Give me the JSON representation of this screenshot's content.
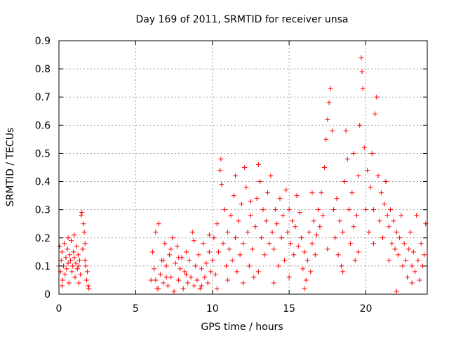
{
  "chart_data": {
    "type": "scatter",
    "title": "Day 169 of 2011, SRMTID for receiver unsa",
    "xlabel": "GPS time / hours",
    "ylabel": "SRMTID / TECUs",
    "xlim": [
      0,
      24
    ],
    "ylim": [
      0,
      0.9
    ],
    "x_ticks": [
      0,
      5,
      10,
      15,
      20
    ],
    "x_tick_labels": [
      "0",
      "5",
      "10",
      "15",
      "20"
    ],
    "y_ticks": [
      0,
      0.1,
      0.2,
      0.3,
      0.4,
      0.5,
      0.6,
      0.7,
      0.8,
      0.9
    ],
    "y_tick_labels": [
      "0",
      "0.1",
      "0.2",
      "0.3",
      "0.4",
      "0.5",
      "0.6",
      "0.7",
      "0.8",
      "0.9"
    ],
    "grid": true,
    "marker": "plus",
    "color": "#ff0000",
    "series": [
      {
        "name": "SRMTID",
        "points": [
          [
            0.0,
            0.1
          ],
          [
            0.05,
            0.17
          ],
          [
            0.1,
            0.08
          ],
          [
            0.15,
            0.12
          ],
          [
            0.2,
            0.15
          ],
          [
            0.25,
            0.05
          ],
          [
            0.3,
            0.1
          ],
          [
            0.35,
            0.18
          ],
          [
            0.4,
            0.07
          ],
          [
            0.45,
            0.13
          ],
          [
            0.5,
            0.09
          ],
          [
            0.55,
            0.16
          ],
          [
            0.6,
            0.11
          ],
          [
            0.65,
            0.04
          ],
          [
            0.7,
            0.14
          ],
          [
            0.75,
            0.12
          ],
          [
            0.8,
            0.19
          ],
          [
            0.85,
            0.08
          ],
          [
            0.9,
            0.1
          ],
          [
            0.95,
            0.15
          ],
          [
            1.0,
            0.13
          ],
          [
            1.05,
            0.06
          ],
          [
            1.1,
            0.11
          ],
          [
            1.15,
            0.17
          ],
          [
            1.2,
            0.09
          ],
          [
            1.25,
            0.14
          ],
          [
            1.3,
            0.1
          ],
          [
            1.35,
            0.12
          ],
          [
            1.4,
            0.07
          ],
          [
            1.45,
            0.28
          ],
          [
            1.5,
            0.29
          ],
          [
            1.55,
            0.16
          ],
          [
            1.6,
            0.25
          ],
          [
            1.65,
            0.22
          ],
          [
            1.7,
            0.18
          ],
          [
            1.75,
            0.1
          ],
          [
            1.8,
            0.05
          ],
          [
            1.85,
            0.08
          ],
          [
            1.9,
            0.03
          ],
          [
            1.95,
            0.02
          ],
          [
            0.2,
            0.03
          ],
          [
            0.6,
            0.2
          ],
          [
            1.0,
            0.21
          ],
          [
            1.3,
            0.04
          ],
          [
            1.7,
            0.12
          ],
          [
            6.0,
            0.05
          ],
          [
            6.1,
            0.15
          ],
          [
            6.2,
            0.09
          ],
          [
            6.3,
            0.22
          ],
          [
            6.4,
            0.02
          ],
          [
            6.5,
            0.25
          ],
          [
            6.6,
            0.07
          ],
          [
            6.7,
            0.12
          ],
          [
            6.8,
            0.04
          ],
          [
            6.9,
            0.18
          ],
          [
            7.0,
            0.1
          ],
          [
            7.1,
            0.03
          ],
          [
            7.2,
            0.14
          ],
          [
            7.3,
            0.06
          ],
          [
            7.4,
            0.2
          ],
          [
            7.5,
            0.01
          ],
          [
            7.6,
            0.11
          ],
          [
            7.7,
            0.17
          ],
          [
            7.8,
            0.05
          ],
          [
            7.9,
            0.09
          ],
          [
            8.0,
            0.13
          ],
          [
            8.1,
            0.02
          ],
          [
            8.2,
            0.08
          ],
          [
            8.3,
            0.15
          ],
          [
            8.4,
            0.04
          ],
          [
            8.5,
            0.12
          ],
          [
            8.6,
            0.06
          ],
          [
            8.7,
            0.22
          ],
          [
            8.8,
            0.03
          ],
          [
            8.9,
            0.1
          ],
          [
            9.0,
            0.05
          ],
          [
            9.1,
            0.14
          ],
          [
            9.2,
            0.02
          ],
          [
            9.3,
            0.09
          ],
          [
            9.4,
            0.18
          ],
          [
            9.5,
            0.06
          ],
          [
            9.6,
            0.11
          ],
          [
            9.7,
            0.04
          ],
          [
            9.8,
            0.15
          ],
          [
            9.9,
            0.08
          ],
          [
            6.3,
            0.05
          ],
          [
            6.8,
            0.12
          ],
          [
            7.3,
            0.16
          ],
          [
            7.8,
            0.13
          ],
          [
            8.3,
            0.07
          ],
          [
            8.8,
            0.19
          ],
          [
            9.3,
            0.03
          ],
          [
            9.8,
            0.21
          ],
          [
            6.5,
            0.02
          ],
          [
            7.0,
            0.06
          ],
          [
            10.0,
            0.12
          ],
          [
            10.1,
            0.2
          ],
          [
            10.2,
            0.07
          ],
          [
            10.3,
            0.25
          ],
          [
            10.4,
            0.15
          ],
          [
            10.5,
            0.44
          ],
          [
            10.55,
            0.48
          ],
          [
            10.6,
            0.39
          ],
          [
            10.7,
            0.18
          ],
          [
            10.8,
            0.3
          ],
          [
            10.9,
            0.1
          ],
          [
            11.0,
            0.22
          ],
          [
            11.1,
            0.16
          ],
          [
            11.2,
            0.28
          ],
          [
            11.3,
            0.12
          ],
          [
            11.4,
            0.35
          ],
          [
            11.5,
            0.2
          ],
          [
            11.6,
            0.08
          ],
          [
            11.7,
            0.26
          ],
          [
            11.8,
            0.14
          ],
          [
            11.9,
            0.32
          ],
          [
            12.0,
            0.18
          ],
          [
            12.1,
            0.45
          ],
          [
            12.2,
            0.38
          ],
          [
            12.3,
            0.22
          ],
          [
            12.4,
            0.1
          ],
          [
            12.5,
            0.28
          ],
          [
            12.6,
            0.16
          ],
          [
            12.7,
            0.06
          ],
          [
            12.8,
            0.24
          ],
          [
            12.9,
            0.34
          ],
          [
            13.0,
            0.46
          ],
          [
            13.1,
            0.4
          ],
          [
            13.2,
            0.2
          ],
          [
            13.3,
            0.3
          ],
          [
            13.4,
            0.14
          ],
          [
            13.5,
            0.26
          ],
          [
            13.6,
            0.36
          ],
          [
            13.7,
            0.18
          ],
          [
            13.8,
            0.42
          ],
          [
            13.9,
            0.22
          ],
          [
            14.0,
            0.16
          ],
          [
            14.1,
            0.3
          ],
          [
            14.2,
            0.25
          ],
          [
            14.3,
            0.1
          ],
          [
            14.4,
            0.34
          ],
          [
            14.5,
            0.2
          ],
          [
            14.6,
            0.28
          ],
          [
            14.7,
            0.12
          ],
          [
            14.8,
            0.37
          ],
          [
            14.9,
            0.22
          ],
          [
            15.0,
            0.3
          ],
          [
            15.1,
            0.18
          ],
          [
            15.2,
            0.26
          ],
          [
            15.3,
            0.14
          ],
          [
            15.4,
            0.24
          ],
          [
            15.5,
            0.35
          ],
          [
            15.6,
            0.17
          ],
          [
            15.7,
            0.29
          ],
          [
            15.8,
            0.2
          ],
          [
            15.9,
            0.09
          ],
          [
            16.0,
            0.15
          ],
          [
            16.1,
            0.05
          ],
          [
            16.2,
            0.12
          ],
          [
            16.3,
            0.22
          ],
          [
            16.4,
            0.08
          ],
          [
            16.5,
            0.18
          ],
          [
            16.6,
            0.26
          ],
          [
            16.7,
            0.14
          ],
          [
            16.8,
            0.21
          ],
          [
            16.9,
            0.3
          ],
          [
            17.0,
            0.24
          ],
          [
            17.1,
            0.36
          ],
          [
            17.2,
            0.28
          ],
          [
            17.3,
            0.45
          ],
          [
            17.4,
            0.55
          ],
          [
            17.5,
            0.62
          ],
          [
            17.6,
            0.68
          ],
          [
            17.7,
            0.73
          ],
          [
            17.8,
            0.58
          ],
          [
            17.9,
            0.3
          ],
          [
            18.0,
            0.2
          ],
          [
            18.1,
            0.34
          ],
          [
            18.2,
            0.14
          ],
          [
            18.3,
            0.26
          ],
          [
            18.4,
            0.1
          ],
          [
            18.5,
            0.22
          ],
          [
            18.6,
            0.4
          ],
          [
            18.7,
            0.58
          ],
          [
            18.8,
            0.48
          ],
          [
            18.9,
            0.3
          ],
          [
            19.0,
            0.18
          ],
          [
            19.1,
            0.36
          ],
          [
            19.2,
            0.24
          ],
          [
            19.3,
            0.12
          ],
          [
            19.4,
            0.28
          ],
          [
            19.5,
            0.42
          ],
          [
            19.6,
            0.6
          ],
          [
            19.7,
            0.84
          ],
          [
            19.75,
            0.79
          ],
          [
            19.8,
            0.73
          ],
          [
            19.9,
            0.52
          ],
          [
            20.0,
            0.3
          ],
          [
            20.1,
            0.44
          ],
          [
            20.2,
            0.22
          ],
          [
            20.3,
            0.38
          ],
          [
            20.4,
            0.5
          ],
          [
            20.5,
            0.3
          ],
          [
            20.6,
            0.64
          ],
          [
            20.7,
            0.7
          ],
          [
            20.8,
            0.42
          ],
          [
            20.9,
            0.26
          ],
          [
            21.0,
            0.36
          ],
          [
            21.1,
            0.2
          ],
          [
            21.2,
            0.32
          ],
          [
            21.3,
            0.4
          ],
          [
            21.4,
            0.28
          ],
          [
            21.5,
            0.24
          ],
          [
            21.6,
            0.3
          ],
          [
            21.7,
            0.18
          ],
          [
            21.8,
            0.26
          ],
          [
            21.9,
            0.16
          ],
          [
            22.0,
            0.22
          ],
          [
            22.1,
            0.14
          ],
          [
            22.2,
            0.2
          ],
          [
            22.3,
            0.28
          ],
          [
            22.4,
            0.1
          ],
          [
            22.5,
            0.18
          ],
          [
            22.6,
            0.12
          ],
          [
            22.7,
            0.06
          ],
          [
            22.8,
            0.16
          ],
          [
            22.9,
            0.22
          ],
          [
            23.0,
            0.1
          ],
          [
            23.1,
            0.15
          ],
          [
            23.2,
            0.08
          ],
          [
            23.3,
            0.28
          ],
          [
            23.4,
            0.12
          ],
          [
            23.5,
            0.05
          ],
          [
            23.6,
            0.18
          ],
          [
            23.7,
            0.1
          ],
          [
            23.8,
            0.14
          ],
          [
            23.9,
            0.25
          ],
          [
            10.3,
            0.02
          ],
          [
            11.0,
            0.05
          ],
          [
            12.0,
            0.04
          ],
          [
            13.0,
            0.08
          ],
          [
            15.0,
            0.06
          ],
          [
            16.0,
            0.02
          ],
          [
            17.5,
            0.16
          ],
          [
            18.5,
            0.08
          ],
          [
            19.5,
            0.15
          ],
          [
            20.5,
            0.18
          ],
          [
            21.5,
            0.12
          ],
          [
            22.0,
            0.01
          ],
          [
            23.0,
            0.04
          ],
          [
            14.0,
            0.04
          ],
          [
            11.5,
            0.42
          ],
          [
            12.5,
            0.33
          ],
          [
            16.5,
            0.36
          ],
          [
            19.2,
            0.5
          ]
        ]
      }
    ]
  }
}
